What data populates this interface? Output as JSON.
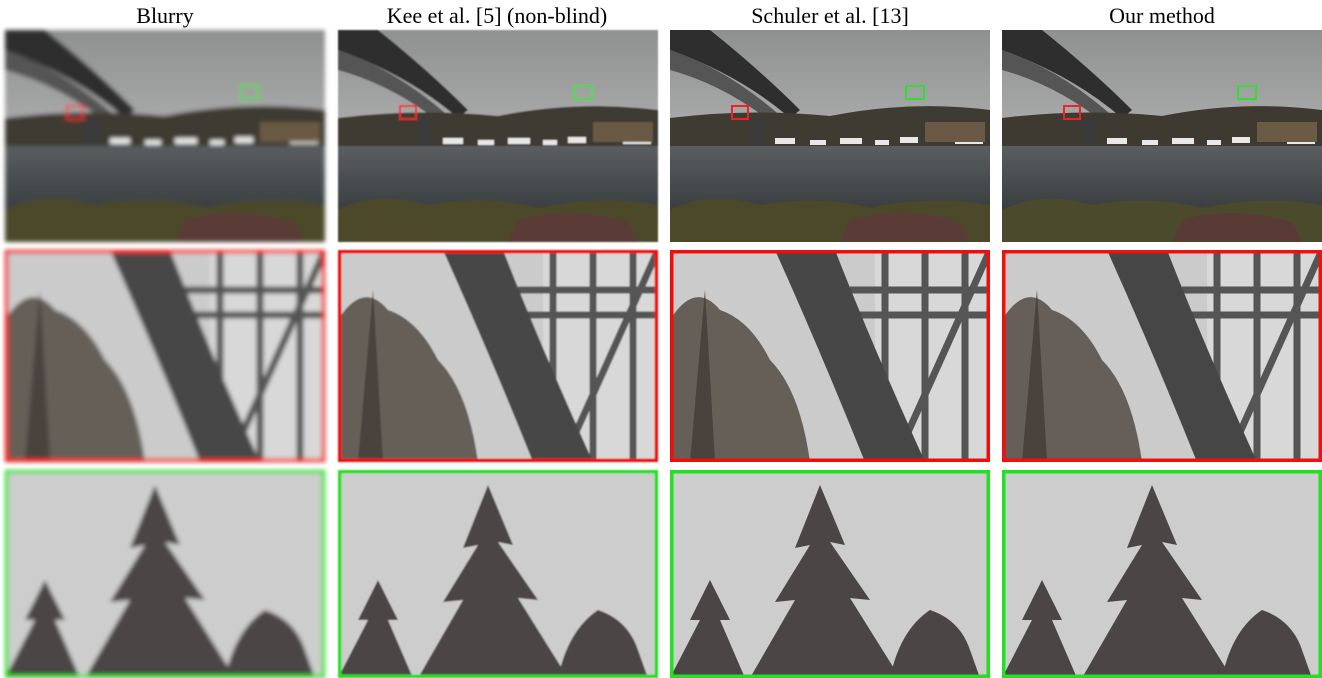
{
  "columns": [
    {
      "title": "Blurry"
    },
    {
      "title": "Kee et al. [5] (non-blind)"
    },
    {
      "title": "Schuler et al. [13]"
    },
    {
      "title": "Our method"
    }
  ]
}
